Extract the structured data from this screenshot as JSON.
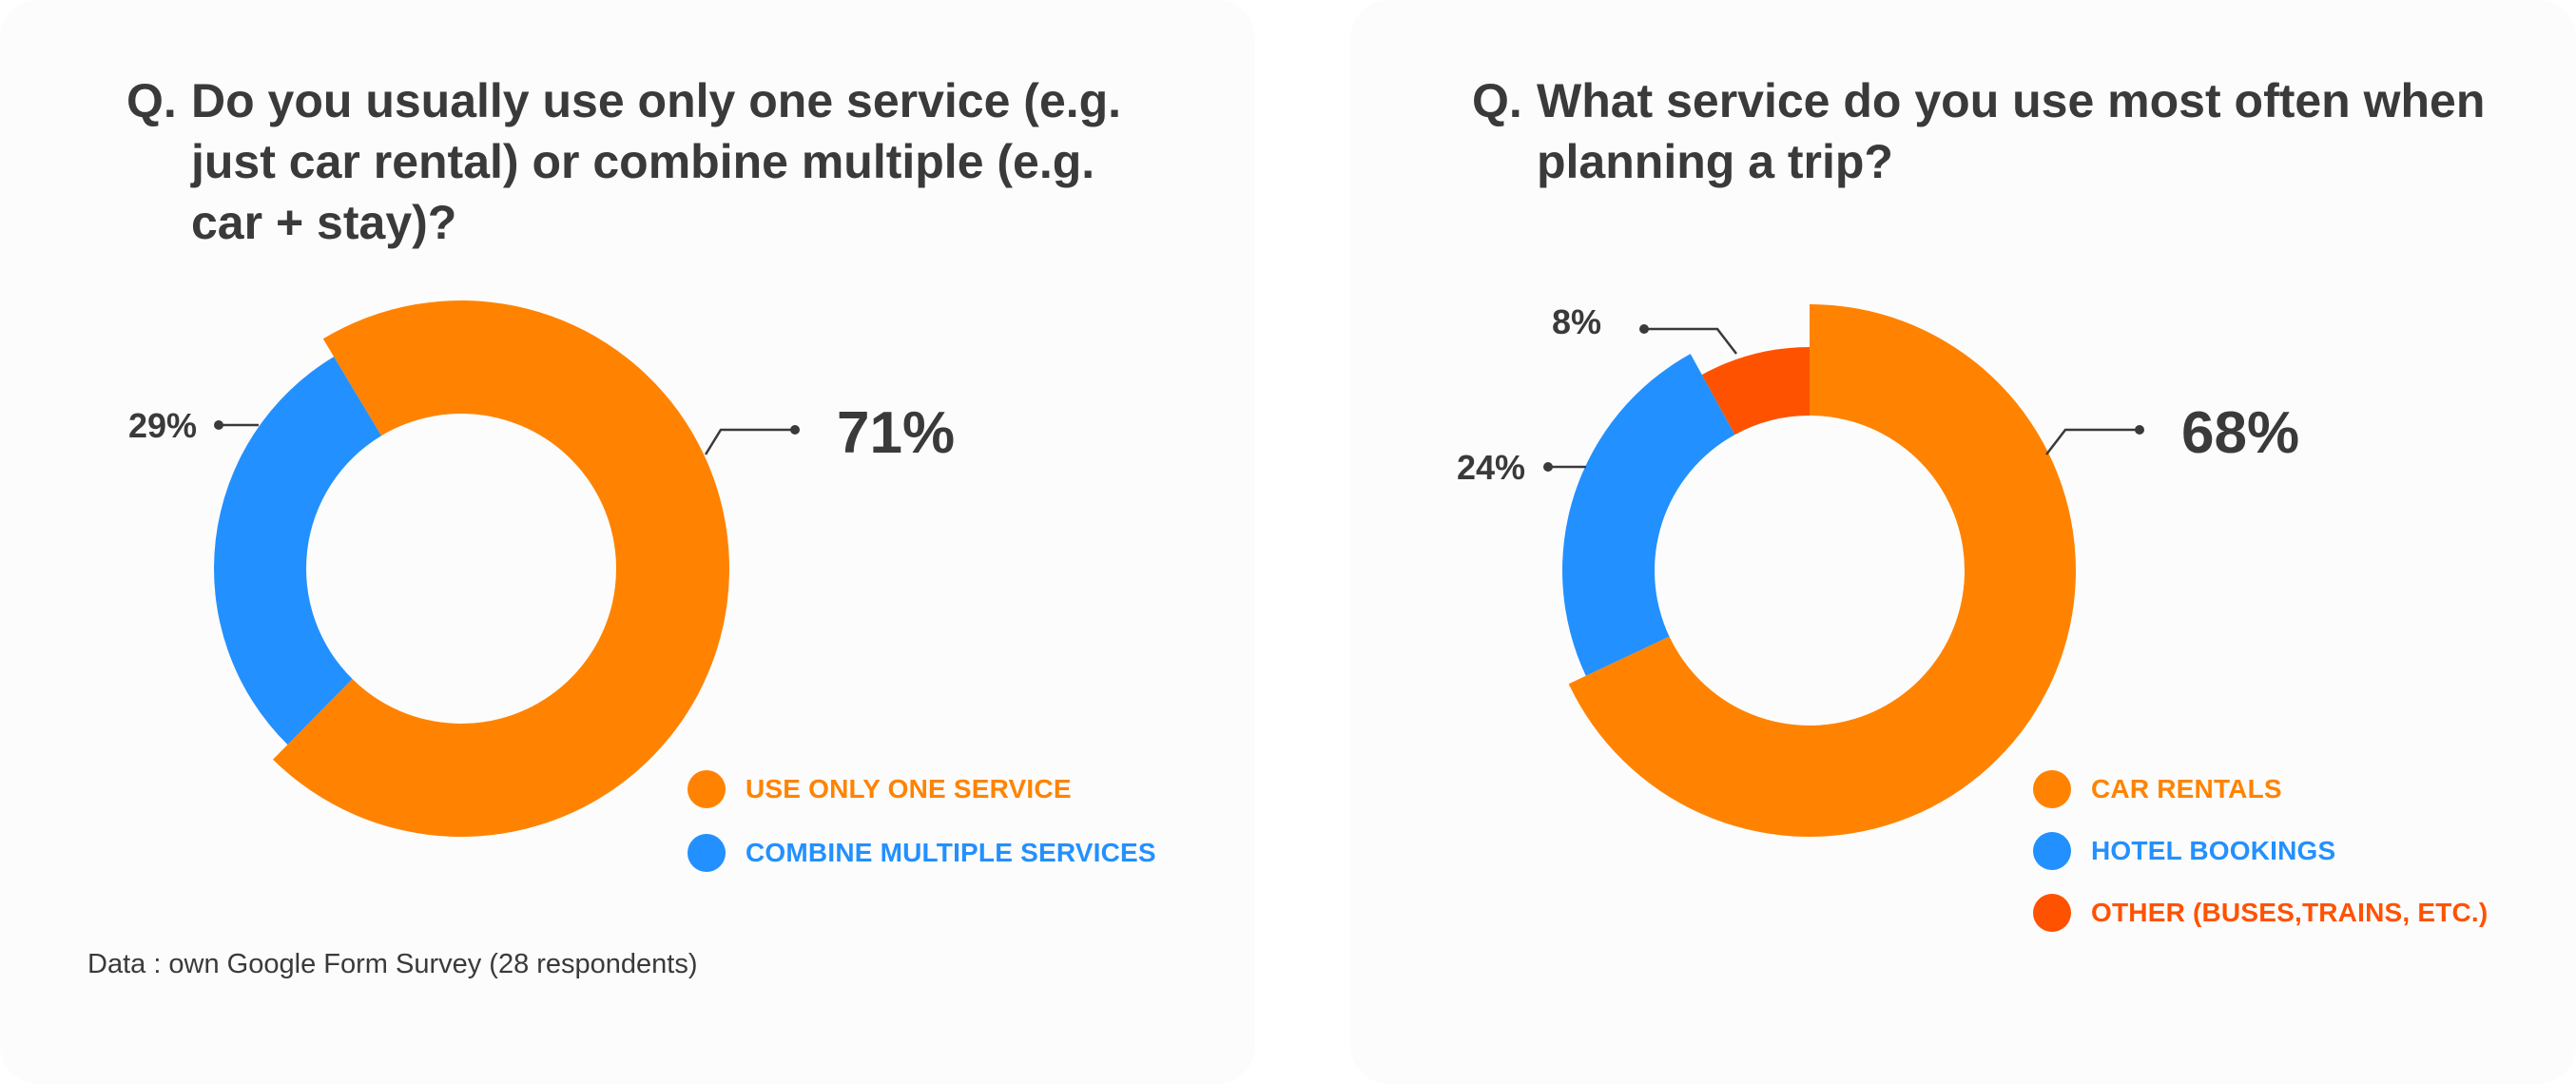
{
  "colors": {
    "orange": "#ff8300",
    "blue": "#2390ff",
    "red_orange": "#ff5200",
    "text_dark": "#3a3a3a"
  },
  "question_marker": "Q.",
  "chart_data": [
    {
      "type": "pie",
      "question": "Do you usually use only one service (e.g. just car rental) or combine multiple (e.g. car + stay)?",
      "categories": [
        "USE ONLY ONE SERVICE",
        "COMBINE MULTIPLE SERVICES"
      ],
      "values": [
        71,
        29
      ],
      "value_labels": [
        "71%",
        "29%"
      ],
      "colors": [
        "#ff8300",
        "#2390ff"
      ],
      "donut": true
    },
    {
      "type": "pie",
      "question": "What service do you use most often when planning a trip?",
      "categories": [
        "CAR RENTALS",
        "HOTEL BOOKINGS",
        "OTHER (BUSES,TRAINS, ETC.)"
      ],
      "values": [
        68,
        24,
        8
      ],
      "value_labels": [
        "68%",
        "24%",
        "8%"
      ],
      "colors": [
        "#ff8300",
        "#2390ff",
        "#ff5200"
      ],
      "donut": true
    }
  ],
  "source": "Data : own Google Form Survey (28 respondents)"
}
